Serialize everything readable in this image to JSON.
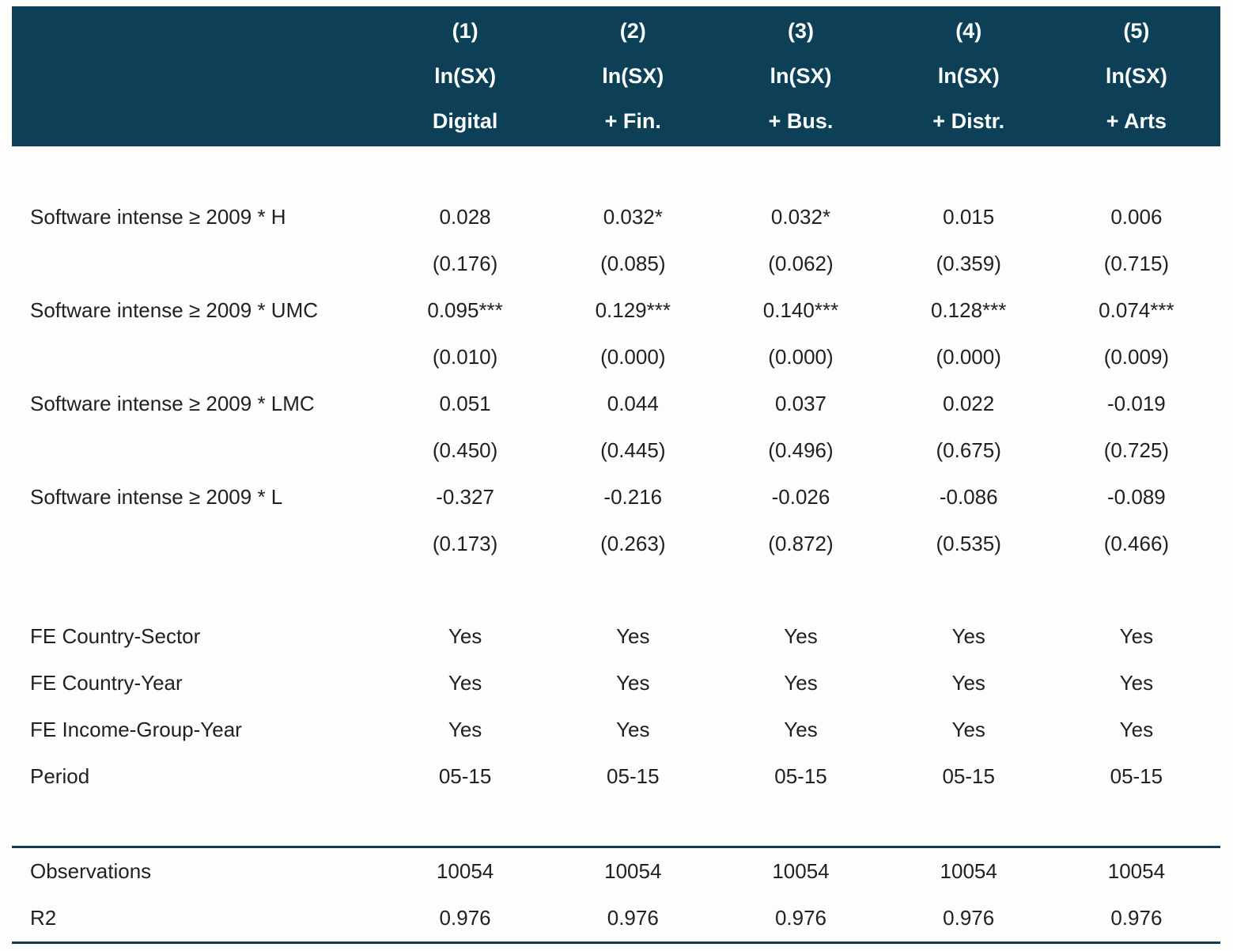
{
  "colors": {
    "header_bg": "#0d4056",
    "header_text": "#fafdfd",
    "body_text": "#212121",
    "rule": "#16394d",
    "page_bg": "#fdfdfb"
  },
  "table": {
    "columns": [
      {
        "num": "(1)",
        "dep": "ln(SX)",
        "sub": "Digital"
      },
      {
        "num": "(2)",
        "dep": "ln(SX)",
        "sub": "+ Fin."
      },
      {
        "num": "(3)",
        "dep": "ln(SX)",
        "sub": "+ Bus."
      },
      {
        "num": "(4)",
        "dep": "ln(SX)",
        "sub": "+ Distr."
      },
      {
        "num": "(5)",
        "dep": "ln(SX)",
        "sub": "+ Arts"
      }
    ],
    "coef_rows": [
      {
        "label": "Software intense ≥ 2009 * H",
        "coefs": [
          "0.028",
          "0.032*",
          "0.032*",
          "0.015",
          "0.006"
        ],
        "pvals": [
          "(0.176)",
          "(0.085)",
          "(0.062)",
          "(0.359)",
          "(0.715)"
        ]
      },
      {
        "label": "Software intense ≥ 2009 * UMC",
        "coefs": [
          "0.095***",
          "0.129***",
          "0.140***",
          "0.128***",
          "0.074***"
        ],
        "pvals": [
          "(0.010)",
          "(0.000)",
          "(0.000)",
          "(0.000)",
          "(0.009)"
        ]
      },
      {
        "label": "Software intense ≥ 2009 * LMC",
        "coefs": [
          "0.051",
          "0.044",
          "0.037",
          "0.022",
          "-0.019"
        ],
        "pvals": [
          "(0.450)",
          "(0.445)",
          "(0.496)",
          "(0.675)",
          "(0.725)"
        ]
      },
      {
        "label": "Software intense ≥ 2009 * L",
        "coefs": [
          "-0.327",
          "-0.216",
          "-0.026",
          "-0.086",
          "-0.089"
        ],
        "pvals": [
          "(0.173)",
          "(0.263)",
          "(0.872)",
          "(0.535)",
          "(0.466)"
        ]
      }
    ],
    "fe_rows": [
      {
        "label": "FE Country-Sector",
        "values": [
          "Yes",
          "Yes",
          "Yes",
          "Yes",
          "Yes"
        ]
      },
      {
        "label": "FE Country-Year",
        "values": [
          "Yes",
          "Yes",
          "Yes",
          "Yes",
          "Yes"
        ]
      },
      {
        "label": "FE Income-Group-Year",
        "values": [
          "Yes",
          "Yes",
          "Yes",
          "Yes",
          "Yes"
        ]
      },
      {
        "label": "Period",
        "values": [
          "05-15",
          "05-15",
          "05-15",
          "05-15",
          "05-15"
        ]
      }
    ],
    "stat_rows": [
      {
        "label": "Observations",
        "values": [
          "10054",
          "10054",
          "10054",
          "10054",
          "10054"
        ]
      },
      {
        "label": "R2",
        "values": [
          "0.976",
          "0.976",
          "0.976",
          "0.976",
          "0.976"
        ]
      }
    ]
  }
}
